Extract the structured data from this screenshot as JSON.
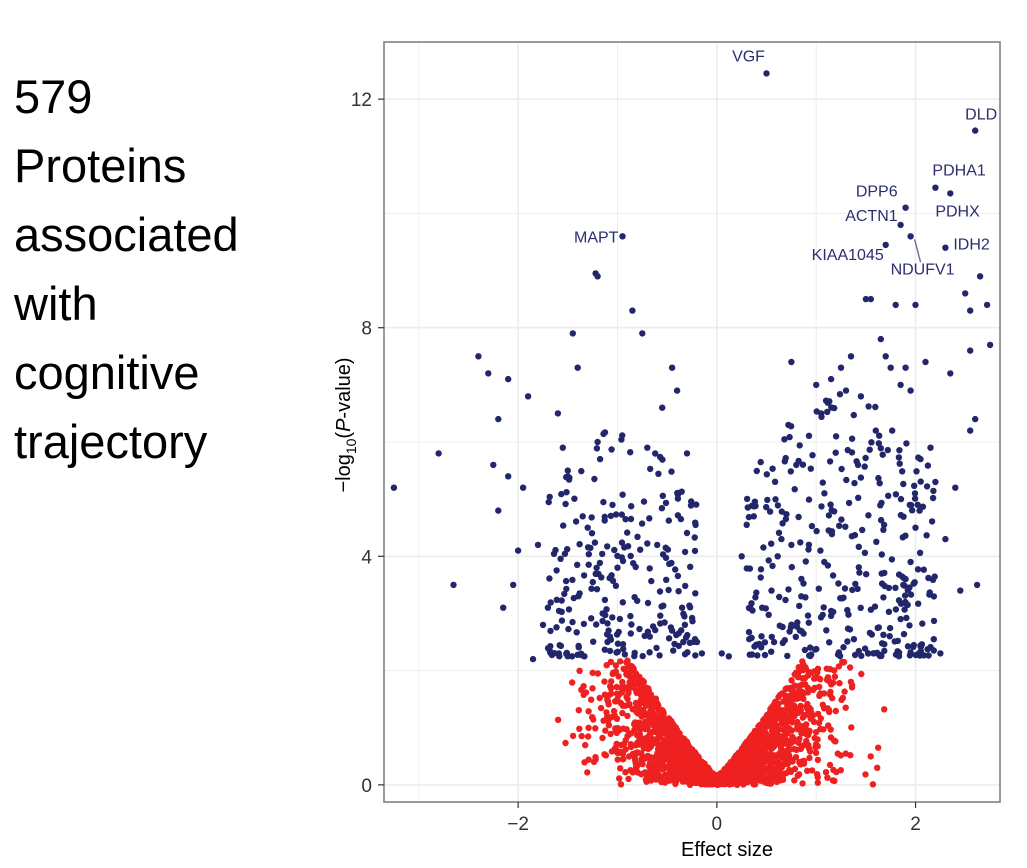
{
  "caption": {
    "lines": [
      "579",
      "Proteins",
      "associated",
      "with",
      "cognitive",
      "trajectory"
    ]
  },
  "chart_data": {
    "type": "scatter",
    "title": "",
    "xlabel": "Effect size",
    "ylabel": "-log10(P-value)",
    "ylabel_parts": {
      "pre": "−log",
      "sub": "10",
      "open": "(",
      "italic": "P",
      "post": "-value)"
    },
    "xlim": [
      -3.35,
      2.85
    ],
    "ylim": [
      -0.3,
      13.0
    ],
    "x_ticks": [
      -2,
      0,
      2
    ],
    "x_tick_labels": [
      "−2",
      "0",
      "2"
    ],
    "y_ticks": [
      0,
      4,
      8,
      12
    ],
    "y_tick_labels": [
      "0",
      "4",
      "8",
      "12"
    ],
    "significance_threshold": 2.2,
    "colors": {
      "significant": "#22276b",
      "not_significant": "#ee2020",
      "label": "#2b2d6e",
      "grid": "#ececec",
      "panel_border": "#7a7a7a"
    },
    "labeled_points": [
      {
        "label": "VGF",
        "x": 0.5,
        "y": 12.45
      },
      {
        "label": "DLD",
        "x": 2.6,
        "y": 11.45
      },
      {
        "label": "PDHA1",
        "x": 2.2,
        "y": 10.45
      },
      {
        "label": "PDHX",
        "x": 2.35,
        "y": 10.35
      },
      {
        "label": "DPP6",
        "x": 1.9,
        "y": 10.1
      },
      {
        "label": "ACTN1",
        "x": 1.85,
        "y": 9.8
      },
      {
        "label": "MAPT",
        "x": -0.95,
        "y": 9.6
      },
      {
        "label": "KIAA1045",
        "x": 1.7,
        "y": 9.45
      },
      {
        "label": "IDH2",
        "x": 2.3,
        "y": 9.4
      },
      {
        "label": "NDUFV1",
        "x": 1.95,
        "y": 9.6
      }
    ],
    "significant_points": [
      [
        -3.25,
        5.2
      ],
      [
        -2.8,
        5.8
      ],
      [
        -2.65,
        3.5
      ],
      [
        -2.4,
        7.5
      ],
      [
        -2.3,
        7.2
      ],
      [
        -2.25,
        5.6
      ],
      [
        -2.2,
        6.4
      ],
      [
        -2.2,
        4.8
      ],
      [
        -2.15,
        3.1
      ],
      [
        -2.1,
        7.1
      ],
      [
        -2.1,
        5.4
      ],
      [
        -2.05,
        3.5
      ],
      [
        -2.0,
        4.1
      ],
      [
        -1.95,
        5.2
      ],
      [
        -1.9,
        6.8
      ],
      [
        -1.85,
        2.2
      ],
      [
        -1.8,
        4.2
      ],
      [
        -1.75,
        2.8
      ],
      [
        -1.7,
        3.1
      ],
      [
        -1.6,
        6.5
      ],
      [
        -1.55,
        5.9
      ],
      [
        -1.5,
        5.5
      ],
      [
        -1.45,
        7.9
      ],
      [
        -1.4,
        7.3
      ],
      [
        -1.35,
        4.7
      ],
      [
        -1.3,
        4.5
      ],
      [
        -1.22,
        8.95
      ],
      [
        -1.2,
        8.9
      ],
      [
        -1.15,
        3.0
      ],
      [
        -1.1,
        2.5
      ],
      [
        -1.05,
        4.9
      ],
      [
        -1.0,
        3.8
      ],
      [
        -0.85,
        8.3
      ],
      [
        -0.75,
        7.9
      ],
      [
        -0.7,
        5.9
      ],
      [
        -0.55,
        6.6
      ],
      [
        -0.6,
        4.2
      ],
      [
        -0.45,
        7.3
      ],
      [
        -0.45,
        2.7
      ],
      [
        -0.4,
        6.9
      ],
      [
        -0.35,
        3.1
      ],
      [
        -0.3,
        5.8
      ],
      [
        -0.2,
        2.5
      ],
      [
        -0.15,
        2.3
      ],
      [
        0.05,
        2.3
      ],
      [
        0.12,
        2.25
      ],
      [
        0.25,
        4.0
      ],
      [
        0.45,
        2.6
      ],
      [
        0.55,
        3.4
      ],
      [
        0.65,
        4.3
      ],
      [
        0.75,
        7.4
      ],
      [
        0.72,
        6.3
      ],
      [
        0.8,
        5.6
      ],
      [
        0.75,
        4.2
      ],
      [
        0.85,
        3.3
      ],
      [
        1.0,
        7.0
      ],
      [
        1.05,
        6.5
      ],
      [
        1.15,
        7.1
      ],
      [
        1.2,
        6.1
      ],
      [
        1.25,
        7.3
      ],
      [
        1.3,
        6.9
      ],
      [
        1.35,
        7.5
      ],
      [
        1.45,
        6.8
      ],
      [
        1.5,
        8.5
      ],
      [
        1.55,
        8.5
      ],
      [
        1.6,
        6.2
      ],
      [
        1.65,
        7.8
      ],
      [
        1.7,
        7.5
      ],
      [
        1.75,
        7.3
      ],
      [
        1.8,
        8.4
      ],
      [
        1.85,
        7.0
      ],
      [
        1.9,
        7.3
      ],
      [
        1.95,
        6.9
      ],
      [
        2.0,
        8.4
      ],
      [
        2.05,
        5.7
      ],
      [
        2.1,
        7.4
      ],
      [
        2.15,
        5.9
      ],
      [
        2.2,
        5.3
      ],
      [
        2.25,
        2.3
      ],
      [
        2.3,
        4.3
      ],
      [
        2.35,
        7.2
      ],
      [
        2.4,
        5.2
      ],
      [
        2.45,
        3.4
      ],
      [
        2.5,
        8.6
      ],
      [
        2.55,
        8.3
      ],
      [
        2.55,
        6.2
      ],
      [
        2.6,
        6.4
      ],
      [
        2.62,
        3.5
      ],
      [
        2.65,
        8.9
      ],
      [
        2.72,
        8.4
      ],
      [
        2.75,
        7.7
      ],
      [
        2.55,
        7.6
      ],
      [
        2.0,
        4.5
      ],
      [
        1.85,
        2.9
      ],
      [
        1.9,
        3.6
      ]
    ],
    "dense_regions": [
      {
        "name": "left-significant-cloud",
        "x_range": [
          -1.7,
          -0.2
        ],
        "y_range": [
          2.2,
          6.5
        ],
        "count": 235
      },
      {
        "name": "right-significant-cloud",
        "x_range": [
          0.3,
          2.2
        ],
        "y_range": [
          2.2,
          7.2
        ],
        "count": 330
      },
      {
        "name": "non-significant-cloud",
        "x_range": [
          -1.8,
          1.8
        ],
        "y_range": [
          0.0,
          2.2
        ],
        "count": 2400
      }
    ]
  }
}
